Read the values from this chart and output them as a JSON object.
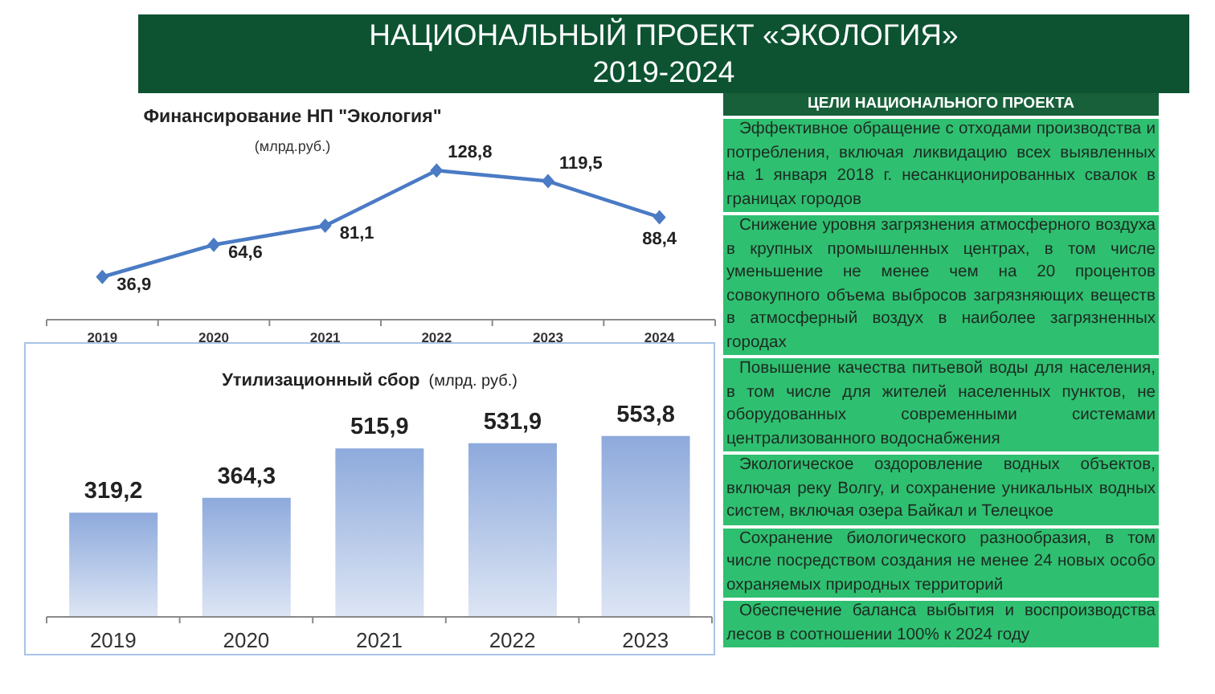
{
  "chart_data": [
    {
      "type": "other",
      "title": "НАЦИОНАЛЬНЫЙ ПРОЕКТ «ЭКОЛОГИЯ»",
      "subtitle": "2019-2024"
    },
    {
      "type": "line",
      "title": "Финансирование НП \"Экология\"",
      "subtitle": "(млрд.руб.)",
      "categories": [
        "2019",
        "2020",
        "2021",
        "2022",
        "2023",
        "2024"
      ],
      "values": [
        36.9,
        64.6,
        81.1,
        128.8,
        119.5,
        88.4
      ],
      "value_labels": [
        "36,9",
        "64,6",
        "81,1",
        "128,8",
        "119,5",
        "88,4"
      ],
      "color": "#4a7bc4",
      "marker": "diamond",
      "tick_labels": "x"
    },
    {
      "type": "bar",
      "title": "Утилизационный сбор",
      "subtitle": "(млрд. руб.)",
      "categories": [
        "2019",
        "2020",
        "2021",
        "2022",
        "2023"
      ],
      "values": [
        319.2,
        364.3,
        515.9,
        531.9,
        553.8
      ],
      "value_labels": [
        "319,2",
        "364,3",
        "515,9",
        "531,9",
        "553,8"
      ],
      "color": "#8eaadc",
      "tick_labels": "x"
    },
    {
      "type": "other",
      "title": "ЦЕЛИ НАЦИОНАЛЬНОГО ПРОЕКТА",
      "annotations": [
        "Эффективное обращение с отходами производства и потребления, включая ликвидацию всех выявленных на 1 января 2018 г. несанкционированных свалок в границах городов",
        "Снижение уровня загрязнения атмосферного воздуха в крупных промышленных центрах, в том числе уменьшение не менее чем на 20 процентов совокупного объема выбросов загрязняющих веществ в атмосферный воздух в наиболее загрязненных городах",
        "Повышение качества питьевой воды для населения, в том числе для жителей населенных пунктов, не оборудованных современными системами централизованного водоснабжения",
        "Экологическое оздоровление водных объектов, включая реку Волгу, и сохранение уникальных водных систем, включая озера Байкал и Телецкое",
        "Сохранение биологического разнообразия, в том числе посредством создания не менее 24 новых особо охраняемых природных территорий",
        "Обеспечение баланса выбытия и воспроизводства лесов в соотношении 100% к 2024 году"
      ]
    }
  ]
}
